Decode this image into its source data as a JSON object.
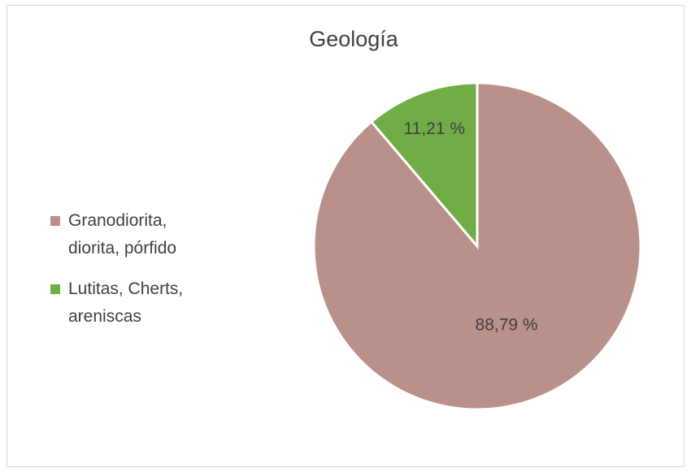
{
  "chart_data": {
    "type": "pie",
    "title": "Geología",
    "categories": [
      "Granodiorita, diorita, pórfido",
      "Lutitas, Cherts, areniscas"
    ],
    "values": [
      88.79,
      11.21
    ],
    "value_labels": [
      "88,79 %",
      "11,21 %"
    ],
    "colors": [
      "#b9908a",
      "#70ad47"
    ],
    "legend": "left"
  }
}
